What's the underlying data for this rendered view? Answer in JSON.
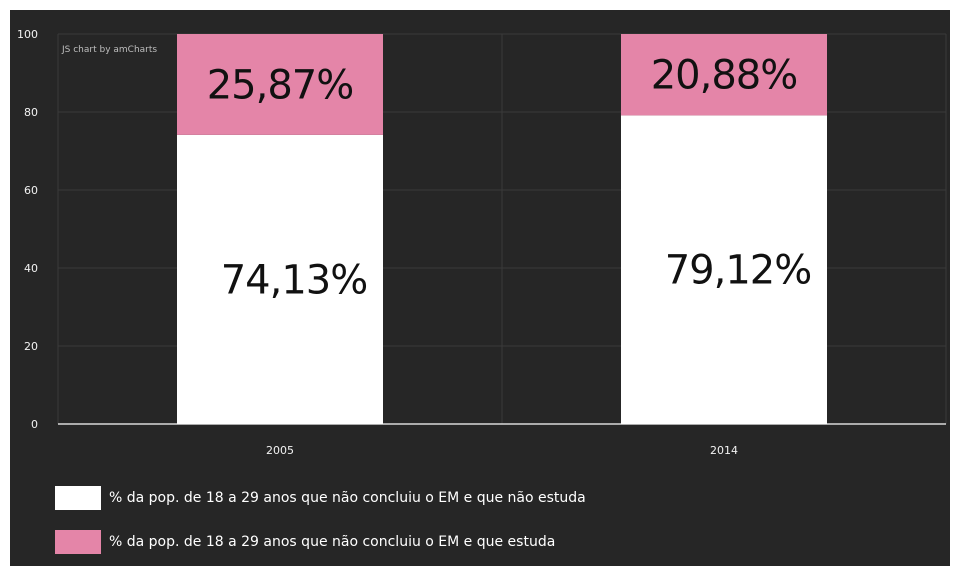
{
  "chart_data": {
    "type": "bar",
    "stacked": true,
    "categories": [
      "2005",
      "2014"
    ],
    "series": [
      {
        "name": "% da pop. de 18 a 29 anos que não concluiu o EM e que não estuda",
        "values": [
          74.13,
          79.12
        ],
        "labels": [
          "74,13%",
          "79,12%"
        ],
        "color": "#ffffff"
      },
      {
        "name": "% da pop. de 18 a 29 anos que não concluiu o EM e que estuda",
        "values": [
          25.87,
          20.88
        ],
        "labels": [
          "25,87%",
          "20,88%"
        ],
        "color": "#e485a8"
      }
    ],
    "ylim": [
      0,
      100
    ],
    "yticks": [
      0,
      20,
      40,
      60,
      80,
      100
    ],
    "grid": true,
    "legend_position": "bottom-left",
    "credit": "JS chart by amCharts"
  },
  "colors": {
    "background": "#262626",
    "grid": "#3a3a3a",
    "axis": "#d9d9d9"
  }
}
